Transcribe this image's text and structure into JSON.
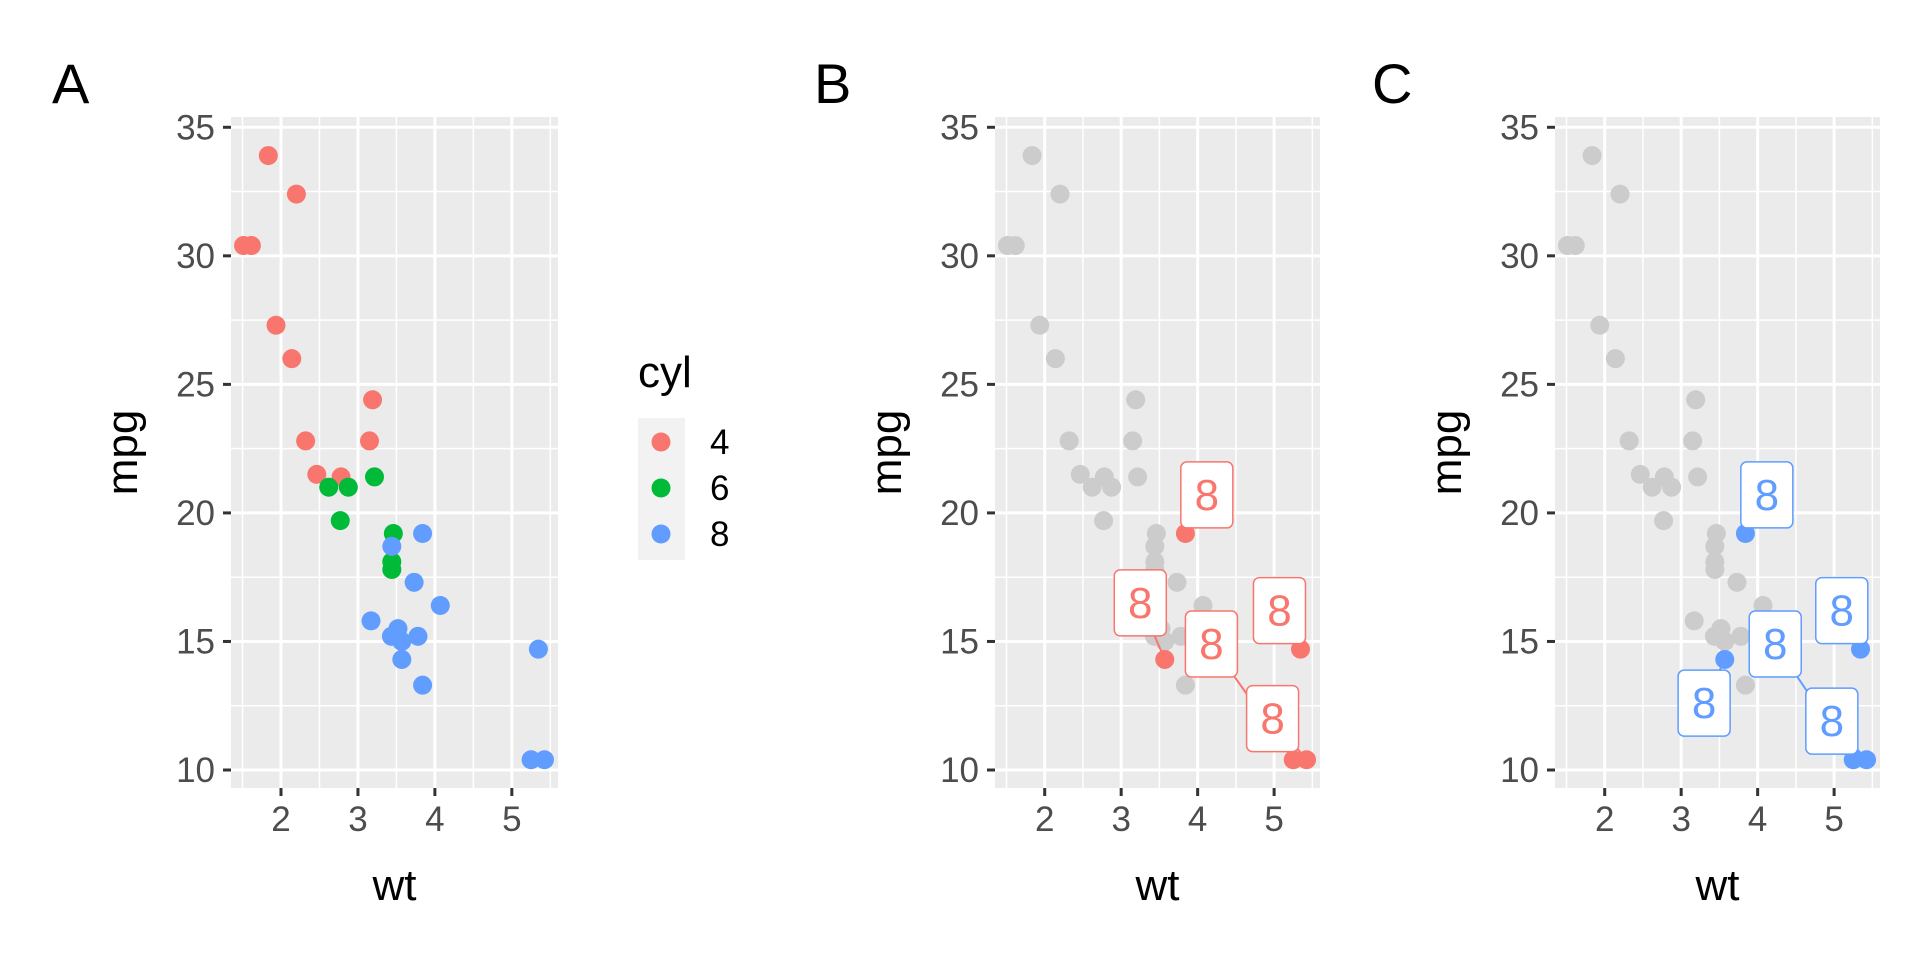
{
  "chart_data": [
    {
      "tag": "A",
      "type": "scatter",
      "xlabel": "wt",
      "ylabel": "mpg",
      "xlim": [
        1.35,
        5.6
      ],
      "ylim": [
        9.3,
        35.4
      ],
      "xticks": [
        "2",
        "3",
        "4",
        "5"
      ],
      "yticks": [
        "10",
        "15",
        "20",
        "25",
        "30",
        "35"
      ],
      "grid": true,
      "legend": {
        "title": "cyl",
        "position": "right",
        "entries": [
          {
            "label": "4",
            "color": "#F8766D"
          },
          {
            "label": "6",
            "color": "#00BA38"
          },
          {
            "label": "8",
            "color": "#619CFF"
          }
        ]
      },
      "series": [
        {
          "name": "4",
          "color": "#F8766D",
          "points": [
            [
              1.835,
              33.9
            ],
            [
              2.2,
              32.4
            ],
            [
              1.513,
              30.4
            ],
            [
              1.615,
              30.4
            ],
            [
              1.935,
              27.3
            ],
            [
              2.14,
              26.0
            ],
            [
              3.19,
              24.4
            ],
            [
              2.32,
              22.8
            ],
            [
              3.15,
              22.8
            ],
            [
              2.465,
              21.5
            ],
            [
              2.78,
              21.4
            ]
          ]
        },
        {
          "name": "6",
          "color": "#00BA38",
          "points": [
            [
              2.62,
              21.0
            ],
            [
              2.875,
              21.0
            ],
            [
              3.215,
              21.4
            ],
            [
              3.44,
              18.1
            ],
            [
              3.46,
              19.2
            ],
            [
              3.44,
              17.8
            ],
            [
              2.77,
              19.7
            ]
          ]
        },
        {
          "name": "8",
          "color": "#619CFF",
          "points": [
            [
              3.44,
              18.7
            ],
            [
              3.57,
              14.3
            ],
            [
              3.84,
              19.2
            ],
            [
              4.07,
              16.4
            ],
            [
              3.73,
              17.3
            ],
            [
              3.78,
              15.2
            ],
            [
              5.25,
              10.4
            ],
            [
              5.424,
              10.4
            ],
            [
              5.345,
              14.7
            ],
            [
              3.52,
              15.5
            ],
            [
              3.435,
              15.2
            ],
            [
              3.84,
              13.3
            ],
            [
              3.17,
              15.8
            ],
            [
              3.57,
              15.0
            ]
          ]
        }
      ]
    },
    {
      "tag": "B",
      "type": "scatter",
      "xlabel": "wt",
      "ylabel": "mpg",
      "xlim": [
        1.35,
        5.6
      ],
      "ylim": [
        9.3,
        35.4
      ],
      "xticks": [
        "2",
        "3",
        "4",
        "5"
      ],
      "yticks": [
        "10",
        "15",
        "20",
        "25",
        "30",
        "35"
      ],
      "grid": true,
      "background_color": "#cccccc",
      "highlight_color": "#F8766D",
      "background_points": [
        [
          1.835,
          33.9
        ],
        [
          2.2,
          32.4
        ],
        [
          1.513,
          30.4
        ],
        [
          1.615,
          30.4
        ],
        [
          1.935,
          27.3
        ],
        [
          2.14,
          26.0
        ],
        [
          3.19,
          24.4
        ],
        [
          2.32,
          22.8
        ],
        [
          3.15,
          22.8
        ],
        [
          2.465,
          21.5
        ],
        [
          2.78,
          21.4
        ],
        [
          2.62,
          21.0
        ],
        [
          2.875,
          21.0
        ],
        [
          3.215,
          21.4
        ],
        [
          3.44,
          18.1
        ],
        [
          3.46,
          19.2
        ],
        [
          3.44,
          17.8
        ],
        [
          2.77,
          19.7
        ],
        [
          3.44,
          18.7
        ],
        [
          3.73,
          17.3
        ],
        [
          3.78,
          15.2
        ],
        [
          3.52,
          15.5
        ],
        [
          3.435,
          15.2
        ],
        [
          3.84,
          13.3
        ],
        [
          3.17,
          15.8
        ],
        [
          3.57,
          15.0
        ],
        [
          4.07,
          16.4
        ]
      ],
      "highlight_points": [
        [
          3.57,
          14.3
        ],
        [
          3.84,
          19.2
        ],
        [
          5.25,
          10.4
        ],
        [
          5.424,
          10.4
        ],
        [
          5.345,
          14.7
        ]
      ],
      "labels": [
        {
          "text": "8",
          "x": 4.12,
          "y": 20.7,
          "tx": 3.84,
          "ty": 19.2
        },
        {
          "text": "8",
          "x": 3.25,
          "y": 16.5,
          "tx": 3.57,
          "ty": 14.3
        },
        {
          "text": "8",
          "x": 4.18,
          "y": 14.9,
          "tx": 5.25,
          "ty": 10.4
        },
        {
          "text": "8",
          "x": 5.07,
          "y": 16.2,
          "tx": 5.345,
          "ty": 14.7
        },
        {
          "text": "8",
          "x": 4.98,
          "y": 12.0,
          "tx": 5.424,
          "ty": 10.4
        }
      ]
    },
    {
      "tag": "C",
      "type": "scatter",
      "xlabel": "wt",
      "ylabel": "mpg",
      "xlim": [
        1.35,
        5.6
      ],
      "ylim": [
        9.3,
        35.4
      ],
      "xticks": [
        "2",
        "3",
        "4",
        "5"
      ],
      "yticks": [
        "10",
        "15",
        "20",
        "25",
        "30",
        "35"
      ],
      "grid": true,
      "background_color": "#cccccc",
      "highlight_color": "#619CFF",
      "background_points": [
        [
          1.835,
          33.9
        ],
        [
          2.2,
          32.4
        ],
        [
          1.513,
          30.4
        ],
        [
          1.615,
          30.4
        ],
        [
          1.935,
          27.3
        ],
        [
          2.14,
          26.0
        ],
        [
          3.19,
          24.4
        ],
        [
          2.32,
          22.8
        ],
        [
          3.15,
          22.8
        ],
        [
          2.465,
          21.5
        ],
        [
          2.78,
          21.4
        ],
        [
          2.62,
          21.0
        ],
        [
          2.875,
          21.0
        ],
        [
          3.215,
          21.4
        ],
        [
          3.44,
          18.1
        ],
        [
          3.46,
          19.2
        ],
        [
          3.44,
          17.8
        ],
        [
          2.77,
          19.7
        ],
        [
          3.44,
          18.7
        ],
        [
          3.73,
          17.3
        ],
        [
          3.78,
          15.2
        ],
        [
          3.52,
          15.5
        ],
        [
          3.435,
          15.2
        ],
        [
          3.84,
          13.3
        ],
        [
          3.17,
          15.8
        ],
        [
          3.57,
          15.0
        ],
        [
          4.07,
          16.4
        ]
      ],
      "highlight_points": [
        [
          3.57,
          14.3
        ],
        [
          3.84,
          19.2
        ],
        [
          5.25,
          10.4
        ],
        [
          5.424,
          10.4
        ],
        [
          5.345,
          14.7
        ]
      ],
      "labels": [
        {
          "text": "8",
          "x": 4.12,
          "y": 20.7,
          "tx": 3.84,
          "ty": 19.2
        },
        {
          "text": "8",
          "x": 3.3,
          "y": 12.6,
          "tx": 3.57,
          "ty": 14.3
        },
        {
          "text": "8",
          "x": 4.23,
          "y": 14.9,
          "tx": 5.25,
          "ty": 10.4
        },
        {
          "text": "8",
          "x": 5.1,
          "y": 16.2,
          "tx": 5.345,
          "ty": 14.7
        },
        {
          "text": "8",
          "x": 4.97,
          "y": 11.9,
          "tx": 5.424,
          "ty": 10.4
        }
      ]
    }
  ]
}
